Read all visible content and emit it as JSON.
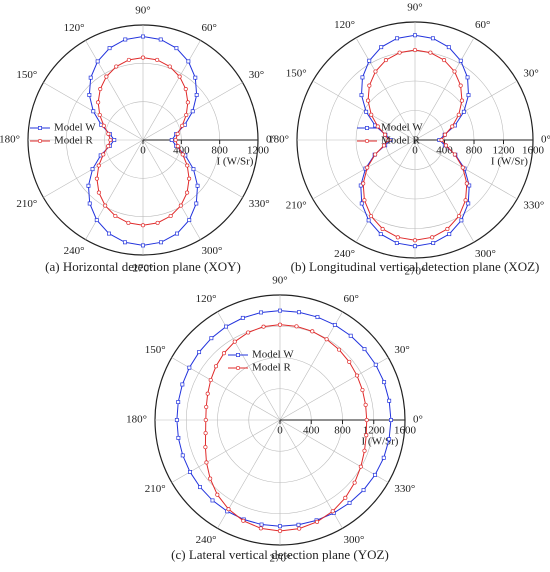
{
  "chart_data": [
    {
      "type": "polar",
      "title": "(a) Horizontal detection plane (XOY)",
      "r_label": "I (W/Sr)",
      "grid": true,
      "theta": [
        0,
        10,
        20,
        30,
        40,
        50,
        60,
        70,
        80,
        90,
        100,
        110,
        120,
        130,
        140,
        150,
        160,
        170,
        180,
        190,
        200,
        210,
        220,
        230,
        240,
        250,
        260,
        270,
        280,
        290,
        300,
        310,
        320,
        330,
        340,
        350
      ],
      "rlim": [
        0,
        1200
      ],
      "rticks": [
        0,
        400,
        800,
        1200
      ],
      "thetaticks": [
        {
          "value": 0,
          "label": "0°"
        },
        {
          "value": 30,
          "label": "30°"
        },
        {
          "value": 60,
          "label": "60°"
        },
        {
          "value": 90,
          "label": "90°"
        },
        {
          "value": 120,
          "label": "120°"
        },
        {
          "value": 150,
          "label": "150°"
        },
        {
          "value": 180,
          "label": "180°"
        },
        {
          "value": 210,
          "label": "210°"
        },
        {
          "value": 240,
          "label": "240°"
        },
        {
          "value": 270,
          "label": "270°"
        },
        {
          "value": 300,
          "label": "300°"
        },
        {
          "value": 330,
          "label": "330°"
        }
      ],
      "series": [
        {
          "name": "Model W",
          "color": "#2233dd",
          "values": [
            300,
            350,
            464,
            599,
            731,
            849,
            947,
            1020,
            1065,
            1080,
            1065,
            1020,
            947,
            849,
            731,
            599,
            464,
            350,
            300,
            351,
            470,
            608,
            743,
            865,
            965,
            1039,
            1084,
            1100,
            1084,
            1039,
            965,
            865,
            743,
            608,
            470,
            351
          ]
        },
        {
          "name": "Model R",
          "color": "#e02a2a",
          "values": [
            340,
            367,
            435,
            521,
            611,
            694,
            764,
            816,
            849,
            860,
            849,
            816,
            764,
            694,
            611,
            521,
            435,
            367,
            340,
            369,
            441,
            533,
            628,
            716,
            790,
            844,
            878,
            890,
            878,
            844,
            790,
            716,
            628,
            533,
            441,
            369
          ]
        }
      ]
    },
    {
      "type": "polar",
      "title": "(b) Longitudinal vertical detection plane (XOZ)",
      "r_label": "I (W/Sr)",
      "grid": true,
      "theta": [
        0,
        10,
        20,
        30,
        40,
        50,
        60,
        70,
        80,
        90,
        100,
        110,
        120,
        130,
        140,
        150,
        160,
        170,
        180,
        190,
        200,
        210,
        220,
        230,
        240,
        250,
        260,
        270,
        280,
        290,
        300,
        310,
        320,
        330,
        340,
        350
      ],
      "rlim": [
        0,
        1600
      ],
      "rticks": [
        0,
        400,
        800,
        1200,
        1600
      ],
      "thetaticks": [
        {
          "value": 0,
          "label": "0°"
        },
        {
          "value": 30,
          "label": "30°"
        },
        {
          "value": 60,
          "label": "60°"
        },
        {
          "value": 90,
          "label": "90°"
        },
        {
          "value": 120,
          "label": "120°"
        },
        {
          "value": 150,
          "label": "150°"
        },
        {
          "value": 180,
          "label": "180°"
        },
        {
          "value": 210,
          "label": "210°"
        },
        {
          "value": 240,
          "label": "240°"
        },
        {
          "value": 270,
          "label": "270°"
        },
        {
          "value": 300,
          "label": "300°"
        },
        {
          "value": 330,
          "label": "330°"
        }
      ],
      "series": [
        {
          "name": "Model W",
          "color": "#2233dd",
          "values": [
            330,
            408,
            576,
            765,
            947,
            1108,
            1241,
            1340,
            1400,
            1420,
            1400,
            1340,
            1241,
            1108,
            947,
            765,
            576,
            408,
            330,
            411,
            582,
            775,
            960,
            1123,
            1258,
            1358,
            1419,
            1440,
            1419,
            1358,
            1258,
            1123,
            960,
            775,
            582,
            411
          ]
        },
        {
          "name": "Model R",
          "color": "#e02a2a",
          "values": [
            360,
            413,
            537,
            685,
            831,
            963,
            1072,
            1153,
            1203,
            1220,
            1203,
            1153,
            1072,
            963,
            831,
            685,
            537,
            413,
            360,
            427,
            575,
            748,
            917,
            1067,
            1192,
            1284,
            1340,
            1360,
            1340,
            1284,
            1192,
            1067,
            917,
            748,
            575,
            427
          ]
        }
      ]
    },
    {
      "type": "polar",
      "title": "(c) Lateral vertical detection plane (YOZ)",
      "r_label": "I (W/Sr)",
      "grid": true,
      "theta": [
        0,
        10,
        20,
        30,
        40,
        50,
        60,
        70,
        80,
        90,
        100,
        110,
        120,
        130,
        140,
        150,
        160,
        170,
        180,
        190,
        200,
        210,
        220,
        230,
        240,
        250,
        260,
        270,
        280,
        290,
        300,
        310,
        320,
        330,
        340,
        350
      ],
      "rlim": [
        0,
        1600
      ],
      "rticks": [
        0,
        400,
        800,
        1200,
        1600
      ],
      "thetaticks": [
        {
          "value": 0,
          "label": "0°"
        },
        {
          "value": 30,
          "label": "30°"
        },
        {
          "value": 60,
          "label": "60°"
        },
        {
          "value": 90,
          "label": "90°"
        },
        {
          "value": 120,
          "label": "120°"
        },
        {
          "value": 150,
          "label": "150°"
        },
        {
          "value": 180,
          "label": "180°"
        },
        {
          "value": 210,
          "label": "210°"
        },
        {
          "value": 240,
          "label": "240°"
        },
        {
          "value": 270,
          "label": "270°"
        },
        {
          "value": 300,
          "label": "300°"
        },
        {
          "value": 330,
          "label": "330°"
        }
      ],
      "series": [
        {
          "name": "Model W",
          "color": "#2233dd",
          "values": [
            1420,
            1419,
            1418,
            1415,
            1412,
            1408,
            1405,
            1402,
            1401,
            1400,
            1398,
            1391,
            1381,
            1367,
            1352,
            1340,
            1330,
            1323,
            1320,
            1321,
            1325,
            1330,
            1336,
            1344,
            1350,
            1355,
            1359,
            1360,
            1362,
            1367,
            1375,
            1385,
            1396,
            1405,
            1413,
            1418
          ]
        },
        {
          "name": "Model R",
          "color": "#e02a2a",
          "values": [
            1110,
            1113,
            1123,
            1138,
            1157,
            1176,
            1193,
            1208,
            1217,
            1220,
            1213,
            1192,
            1158,
            1116,
            1070,
            1024,
            985,
            959,
            950,
            967,
            1016,
            1087,
            1167,
            1248,
            1318,
            1373,
            1408,
            1420,
            1412,
            1387,
            1349,
            1301,
            1247,
            1195,
            1151,
            1121
          ]
        }
      ]
    }
  ]
}
